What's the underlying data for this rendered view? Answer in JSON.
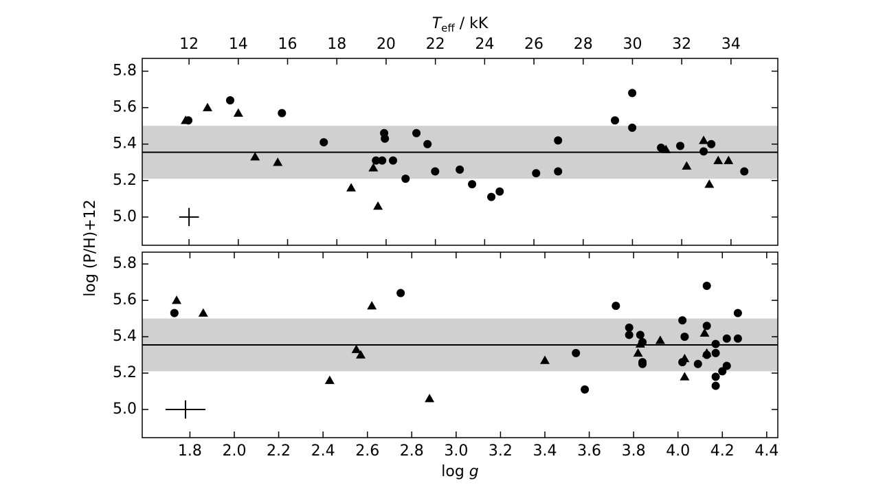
{
  "chart_data": [
    {
      "type": "scatter",
      "xlabel": [
        "T",
        "eff",
        " / kK"
      ],
      "ylabel": "log (P/H)+12",
      "xaxis_side": "top",
      "xlim": [
        10.1,
        35.9
      ],
      "ylim": [
        4.845,
        5.87
      ],
      "xticks": [
        12,
        14,
        16,
        18,
        20,
        22,
        24,
        26,
        28,
        30,
        32,
        34
      ],
      "yticks": [
        {
          "value": 5.0,
          "label": "5.0"
        },
        {
          "value": 5.2,
          "label": "5.2"
        },
        {
          "value": 5.4,
          "label": "5.4"
        },
        {
          "value": 5.6,
          "label": "5.6"
        },
        {
          "value": 5.8,
          "label": "5.8"
        }
      ],
      "band": [
        5.21,
        5.5
      ],
      "hline": 5.355,
      "band_color": "#d0d0d0",
      "error": {
        "x": 12.0,
        "y": 5.0,
        "xerr": 0.4,
        "yerr": 0.05
      },
      "series": [
        {
          "marker": "circle",
          "color": "#000000",
          "x": [
            11.97,
            13.67,
            15.77,
            17.47,
            19.92,
            19.95,
            19.59,
            19.84,
            20.28,
            20.79,
            21.23,
            21.68,
            21.99,
            22.99,
            23.49,
            24.27,
            24.61,
            26.09,
            26.98,
            26.98,
            29.29,
            29.99,
            29.99,
            31.16,
            31.94,
            32.89,
            33.2,
            34.54
          ],
          "values": [
            5.53,
            5.64,
            5.57,
            5.41,
            5.46,
            5.43,
            5.31,
            5.31,
            5.31,
            5.21,
            5.46,
            5.4,
            5.25,
            5.26,
            5.18,
            5.11,
            5.14,
            5.24,
            5.42,
            5.25,
            5.53,
            5.68,
            5.49,
            5.38,
            5.39,
            5.36,
            5.4,
            5.25
          ]
        },
        {
          "marker": "triangle",
          "color": "#000000",
          "x": [
            11.86,
            12.75,
            14.0,
            14.68,
            15.6,
            18.58,
            19.48,
            19.67,
            31.36,
            32.2,
            32.89,
            33.12,
            33.48,
            33.9
          ],
          "values": [
            5.53,
            5.6,
            5.57,
            5.33,
            5.3,
            5.16,
            5.27,
            5.06,
            5.37,
            5.28,
            5.42,
            5.18,
            5.31,
            5.31
          ]
        }
      ]
    },
    {
      "type": "scatter",
      "xlabel": [
        "log ",
        "g"
      ],
      "xaxis_side": "bottom",
      "xlim": [
        1.585,
        4.45
      ],
      "ylim": [
        4.845,
        5.865
      ],
      "xticks": [
        1.8,
        {
          "value": 2.0,
          "label": "2.0"
        },
        2.2,
        2.4,
        2.6,
        2.8,
        {
          "value": 3.0,
          "label": "3.0"
        },
        3.2,
        3.4,
        3.6,
        3.8,
        {
          "value": 4.0,
          "label": "4.0"
        },
        4.2,
        4.4
      ],
      "yticks": [
        {
          "value": 5.0,
          "label": "5.0"
        },
        {
          "value": 5.2,
          "label": "5.2"
        },
        {
          "value": 5.4,
          "label": "5.4"
        },
        {
          "value": 5.6,
          "label": "5.6"
        },
        {
          "value": 5.8,
          "label": "5.8"
        }
      ],
      "band": [
        5.21,
        5.5
      ],
      "hline": 5.355,
      "band_color": "#d0d0d0",
      "error": {
        "x": 1.78,
        "y": 5.0,
        "xerr": 0.09,
        "yerr": 0.05
      },
      "series": [
        {
          "marker": "circle",
          "color": "#000000",
          "x": [
            1.73,
            2.75,
            3.54,
            3.58,
            3.72,
            3.78,
            3.78,
            3.83,
            3.84,
            3.84,
            3.84,
            4.02,
            4.03,
            4.02,
            4.09,
            4.13,
            4.13,
            4.13,
            4.17,
            4.17,
            4.17,
            4.17,
            4.2,
            4.22,
            4.22,
            4.27,
            4.27
          ],
          "values": [
            5.53,
            5.64,
            5.31,
            5.11,
            5.57,
            5.45,
            5.41,
            5.41,
            5.37,
            5.26,
            5.25,
            5.49,
            5.4,
            5.26,
            5.25,
            5.68,
            5.46,
            5.3,
            5.36,
            5.31,
            5.18,
            5.13,
            5.21,
            5.24,
            5.39,
            5.53,
            5.39
          ]
        },
        {
          "marker": "triangle",
          "color": "#000000",
          "x": [
            1.74,
            1.86,
            2.43,
            2.55,
            2.57,
            2.62,
            2.88,
            3.4,
            3.82,
            3.83,
            3.92,
            4.03,
            4.03,
            4.12,
            4.13
          ],
          "values": [
            5.6,
            5.53,
            5.16,
            5.33,
            5.3,
            5.57,
            5.06,
            5.27,
            5.31,
            5.36,
            5.38,
            5.28,
            5.18,
            5.42,
            5.31
          ]
        }
      ]
    }
  ]
}
